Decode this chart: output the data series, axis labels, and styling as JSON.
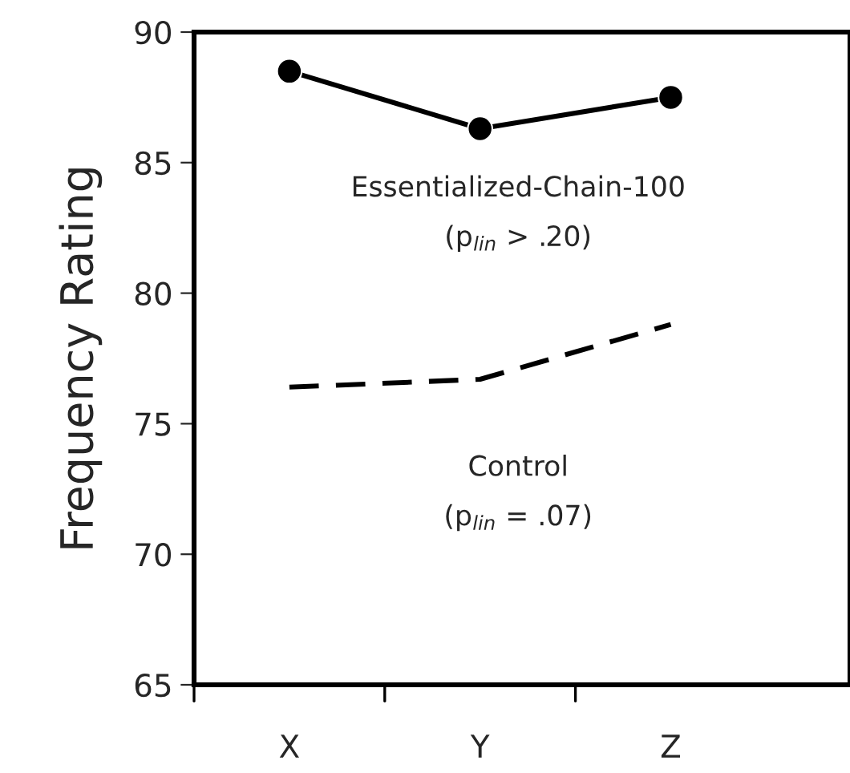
{
  "chart_data": {
    "type": "line",
    "ylabel": "Frequency Rating",
    "categories": [
      "X",
      "Y",
      "Z"
    ],
    "series": [
      {
        "name": "Essentialized-Chain-100",
        "color": "#000000",
        "values": [
          88.5,
          86.3,
          87.5
        ],
        "marker": "circle",
        "line_style": "solid"
      },
      {
        "name": "Control",
        "color": "#000000",
        "values": [
          76.4,
          76.7,
          78.8
        ],
        "marker": "none",
        "line_style": "dashed"
      }
    ],
    "annotations": [
      "(p$_{lin}$ > .20)",
      "(p$_{lin}$ = .07)"
    ],
    "ylim": [
      65,
      90
    ],
    "yticks": [
      65,
      70,
      75,
      80,
      85,
      90
    ],
    "grid": false,
    "legend": false
  }
}
